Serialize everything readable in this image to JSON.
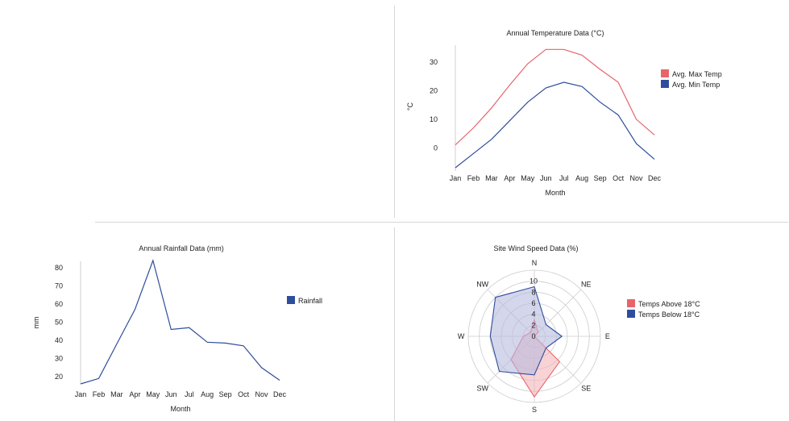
{
  "colors": {
    "red": "#e8646a",
    "blue": "#2e4d9c",
    "red_fill": "#f4b6b9",
    "blue_fill": "#b7bbe0",
    "axis": "#cfcfcf",
    "grid": "#cccccc"
  },
  "chart_data": [
    {
      "type": "line",
      "title": "Annual Temperature Data (°C)",
      "xlabel": "Month",
      "ylabel": "°C",
      "categories": [
        "Jan",
        "Feb",
        "Mar",
        "Apr",
        "May",
        "Jun",
        "Jul",
        "Aug",
        "Sep",
        "Oct",
        "Nov",
        "Dec"
      ],
      "ylim": [
        -7,
        36
      ],
      "yticks": [
        0,
        10,
        20,
        30
      ],
      "legend_position": "right",
      "series": [
        {
          "name": "Avg. Max Temp",
          "color": "#e8646a",
          "values": [
            1,
            7,
            14,
            22,
            29.5,
            34.5,
            34.5,
            32.5,
            27.5,
            23,
            10,
            4.5
          ]
        },
        {
          "name": "Avg. Min Temp",
          "color": "#2e4d9c",
          "values": [
            -7,
            -2,
            3,
            9.5,
            16,
            21,
            23,
            21.5,
            16,
            11.5,
            1.5,
            -4
          ]
        }
      ]
    },
    {
      "type": "line",
      "title": "Annual Rainfall Data (mm)",
      "xlabel": "Month",
      "ylabel": "mm",
      "categories": [
        "Jan",
        "Feb",
        "Mar",
        "Apr",
        "May",
        "Jun",
        "Jul",
        "Aug",
        "Sep",
        "Oct",
        "Nov",
        "Dec"
      ],
      "ylim": [
        16,
        84
      ],
      "yticks": [
        20,
        30,
        40,
        50,
        60,
        70,
        80
      ],
      "legend_position": "right",
      "series": [
        {
          "name": "Rainfall",
          "color": "#2e4d9c",
          "values": [
            16,
            19,
            38,
            57,
            84,
            46,
            47,
            39,
            38.5,
            37,
            25,
            18
          ]
        }
      ]
    },
    {
      "type": "radar",
      "title": "Site Wind Speed Data (%)",
      "categories": [
        "N",
        "NE",
        "E",
        "SE",
        "S",
        "SW",
        "W",
        "NW"
      ],
      "ylim": [
        0,
        12
      ],
      "rticks": [
        0,
        2,
        4,
        6,
        8,
        10
      ],
      "legend_position": "right",
      "series": [
        {
          "name": "Temps Above 18°C",
          "color": "#e8646a",
          "fill": "#f4b6b9",
          "values": [
            3,
            1,
            0,
            6.5,
            11,
            6,
            2,
            1
          ]
        },
        {
          "name": "Temps Below 18°C",
          "color": "#2e4d9c",
          "fill": "#b7bbe0",
          "values": [
            9,
            3,
            5,
            3,
            7,
            9,
            8,
            10
          ]
        }
      ]
    }
  ]
}
